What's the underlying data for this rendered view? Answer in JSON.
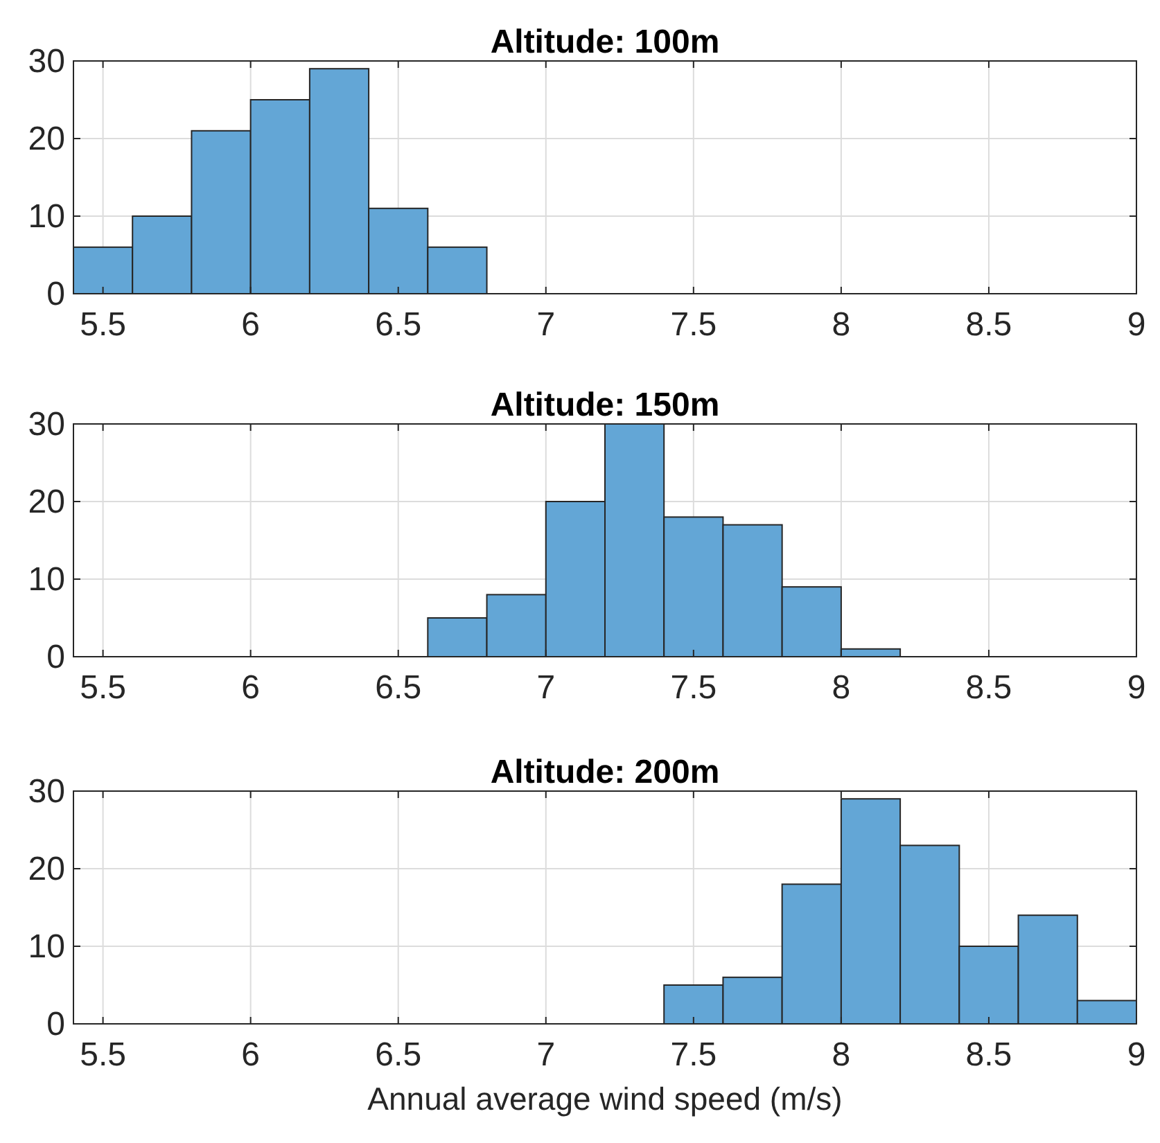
{
  "chart_data": [
    {
      "type": "histogram",
      "title": "Altitude: 100m",
      "bins": [
        5.4,
        5.6,
        5.8,
        6.0,
        6.2,
        6.4,
        6.6,
        6.8
      ],
      "values": [
        6,
        10,
        21,
        25,
        29,
        11,
        6
      ],
      "color": "#63a6d6",
      "xlim": [
        5.4,
        9
      ],
      "xticks": [
        5.5,
        6,
        6.5,
        7,
        7.5,
        8,
        8.5,
        9
      ],
      "ylim": [
        0,
        30
      ],
      "yticks": [
        0,
        10,
        20,
        30
      ],
      "grid": true
    },
    {
      "type": "histogram",
      "title": "Altitude: 150m",
      "bins": [
        6.6,
        6.8,
        7.0,
        7.2,
        7.4,
        7.6,
        7.8,
        8.0,
        8.2
      ],
      "values": [
        5,
        8,
        20,
        30,
        18,
        17,
        9,
        1
      ],
      "color": "#63a6d6",
      "xlim": [
        5.4,
        9
      ],
      "xticks": [
        5.5,
        6,
        6.5,
        7,
        7.5,
        8,
        8.5,
        9
      ],
      "ylim": [
        0,
        30
      ],
      "yticks": [
        0,
        10,
        20,
        30
      ],
      "grid": true
    },
    {
      "type": "histogram",
      "title": "Altitude: 200m",
      "xlabel": "Annual average wind speed (m/s)",
      "bins": [
        7.4,
        7.6,
        7.8,
        8.0,
        8.2,
        8.4,
        8.6,
        8.8,
        9.0
      ],
      "values": [
        5,
        6,
        18,
        29,
        23,
        10,
        14,
        3
      ],
      "color": "#63a6d6",
      "xlim": [
        5.4,
        9
      ],
      "xticks": [
        5.5,
        6,
        6.5,
        7,
        7.5,
        8,
        8.5,
        9
      ],
      "ylim": [
        0,
        30
      ],
      "yticks": [
        0,
        10,
        20,
        30
      ],
      "grid": true
    }
  ]
}
